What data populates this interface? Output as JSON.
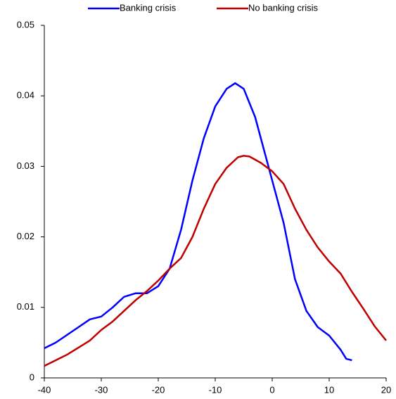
{
  "chart_data": {
    "type": "line",
    "series": [
      {
        "name": "Banking crisis",
        "color": "#0000ff",
        "x": [
          -40,
          -38,
          -36,
          -34,
          -32,
          -30,
          -28,
          -26,
          -24,
          -22,
          -20,
          -18,
          -16,
          -14,
          -12,
          -10,
          -8,
          -6.5,
          -5,
          -3,
          -1,
          0,
          2,
          4,
          6,
          8,
          10,
          12,
          13,
          14
        ],
        "values": [
          0.0042,
          0.005,
          0.0061,
          0.0072,
          0.0083,
          0.0087,
          0.01,
          0.0115,
          0.012,
          0.012,
          0.013,
          0.0155,
          0.021,
          0.028,
          0.034,
          0.0385,
          0.041,
          0.0418,
          0.041,
          0.037,
          0.031,
          0.028,
          0.022,
          0.014,
          0.0095,
          0.0072,
          0.006,
          0.004,
          0.0027,
          0.0025
        ]
      },
      {
        "name": "No banking crisis",
        "color": "#c00000",
        "x": [
          -40,
          -38,
          -36,
          -34,
          -32,
          -30,
          -28,
          -26,
          -24,
          -22,
          -20,
          -18,
          -16,
          -14,
          -12,
          -10,
          -8,
          -6,
          -5,
          -4,
          -2,
          0,
          2,
          4,
          6,
          8,
          10,
          12,
          14,
          16,
          18,
          20
        ],
        "values": [
          0.0017,
          0.0025,
          0.0033,
          0.0043,
          0.0053,
          0.0068,
          0.008,
          0.0095,
          0.011,
          0.0123,
          0.0138,
          0.0155,
          0.017,
          0.02,
          0.024,
          0.0275,
          0.0298,
          0.0313,
          0.0315,
          0.0314,
          0.0305,
          0.0293,
          0.0275,
          0.024,
          0.021,
          0.0185,
          0.0165,
          0.0148,
          0.0122,
          0.0098,
          0.0073,
          0.0053
        ]
      }
    ],
    "xlim": [
      -40,
      20
    ],
    "xticks": [
      -40,
      -30,
      -20,
      -10,
      0,
      10,
      20
    ],
    "ylim": [
      0,
      0.05
    ],
    "yticks": [
      0,
      0.01,
      0.02,
      0.03,
      0.04,
      0.05
    ],
    "grid": false,
    "legend": "top"
  }
}
